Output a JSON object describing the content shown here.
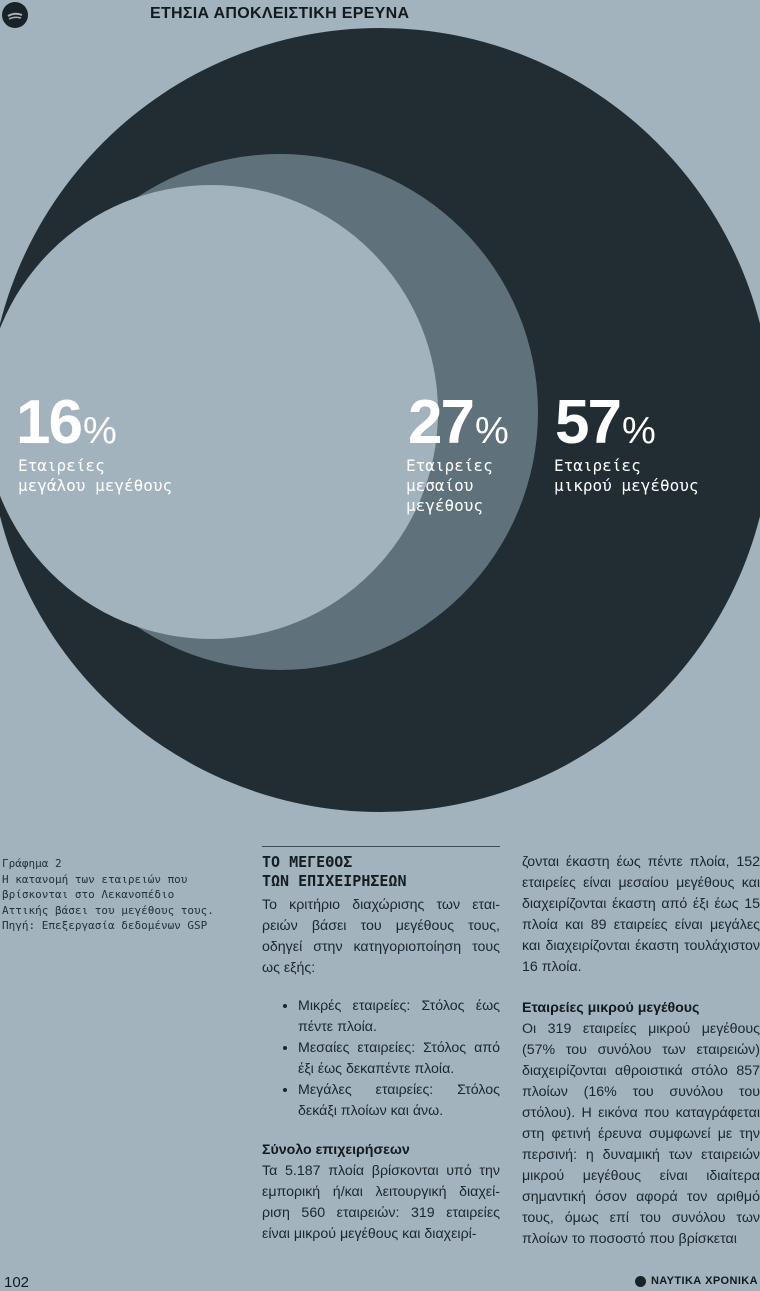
{
  "header": {
    "title": "ΕΤΗΣΙΑ ΑΠΟΚΛΕΙΣΤΙΚΗ ΕΡΕΥΝΑ",
    "logo_icon": "wave-logo-icon"
  },
  "chart_data": {
    "type": "nested-circles",
    "title": "",
    "segments": [
      {
        "value": 57,
        "label_lines": [
          "Εταιρείες",
          "μικρού μεγέθους"
        ],
        "color": "#222d33"
      },
      {
        "value": 27,
        "label_lines": [
          "Εταιρείες",
          "μεσαίου",
          "μεγέθους"
        ],
        "color": "#5f717b"
      },
      {
        "value": 16,
        "label_lines": [
          "Εταιρείες",
          "μεγάλου μεγέθους"
        ],
        "color": "#a3b3be"
      }
    ],
    "percent_sign": "%",
    "background_color": "#a3b3be"
  },
  "caption": {
    "lines": [
      "Γράφημα 2",
      "Η κατανομή των εταιρειών που",
      "βρίσκονται στο Λεκανοπέδιο",
      "Αττικής βάσει του μεγέθους τους.",
      "Πηγή: Επεξεργασία δεδομένων GSP"
    ]
  },
  "article": {
    "section_title_lines": [
      "ΤΟ ΜΕΓΕΘΟΣ",
      "ΤΩΝ ΕΠΙΧΕΙΡΗΣΕΩΝ"
    ],
    "intro": "Το κριτήριο διαχώρισης των εται-ρειών βάσει του μεγέθους τους, οδηγεί στην κατηγοριοποίηση τους ως εξής:",
    "bullets": [
      "Μικρές εταιρείες: Στόλος έως πέντε πλοία.",
      "Μεσαίες εταιρείες: Στόλος από έξι έως δεκαπέντε πλοία.",
      "Μεγάλες εταιρείες: Στόλος δεκάξι πλοίων και άνω."
    ],
    "total_heading": "Σύνολο επιχειρήσεων",
    "total_text": "Τα 5.187 πλοία βρίσκονται υπό την εμπορική ή/και λειτουργική διαχεί-ριση 560 εταιρειών: 319 εταιρείες είναι μικρού μεγέθους και διαχειρί-",
    "col2_text": "ζονται έκαστη έως πέντε πλοία, 152 εταιρείες είναι μεσαίου μεγέθους και διαχειρίζονται έκαστη από έξι έως 15 πλοία και 89 εταιρείες είναι μεγάλες και διαχειρίζονται έκαστη τουλάχιστον 16 πλοία.",
    "small_heading": "Εταιρείες μικρού μεγέθους",
    "small_text": "Οι 319 εταιρείες μικρού μεγέθους (57% του συνόλου των εταιρειών) διαχειρίζονται αθροιστικά στόλο 857 πλοίων (16% του συνόλου του στόλου). Η εικόνα που καταγράφεται στη φετινή έρευνα συμφωνεί με την περσινή: η δυναμική των εταιρειών μικρού μεγέθους είναι ιδιαίτερα σημαντική όσον αφορά τον αριθμό τους, όμως επί του συνόλου των πλοίων το ποσοστό που βρίσκεται"
  },
  "footer": {
    "page_number": "102",
    "brand": "ΝΑΥΤΙΚΑ ΧΡΟΝΙΚΑ"
  }
}
